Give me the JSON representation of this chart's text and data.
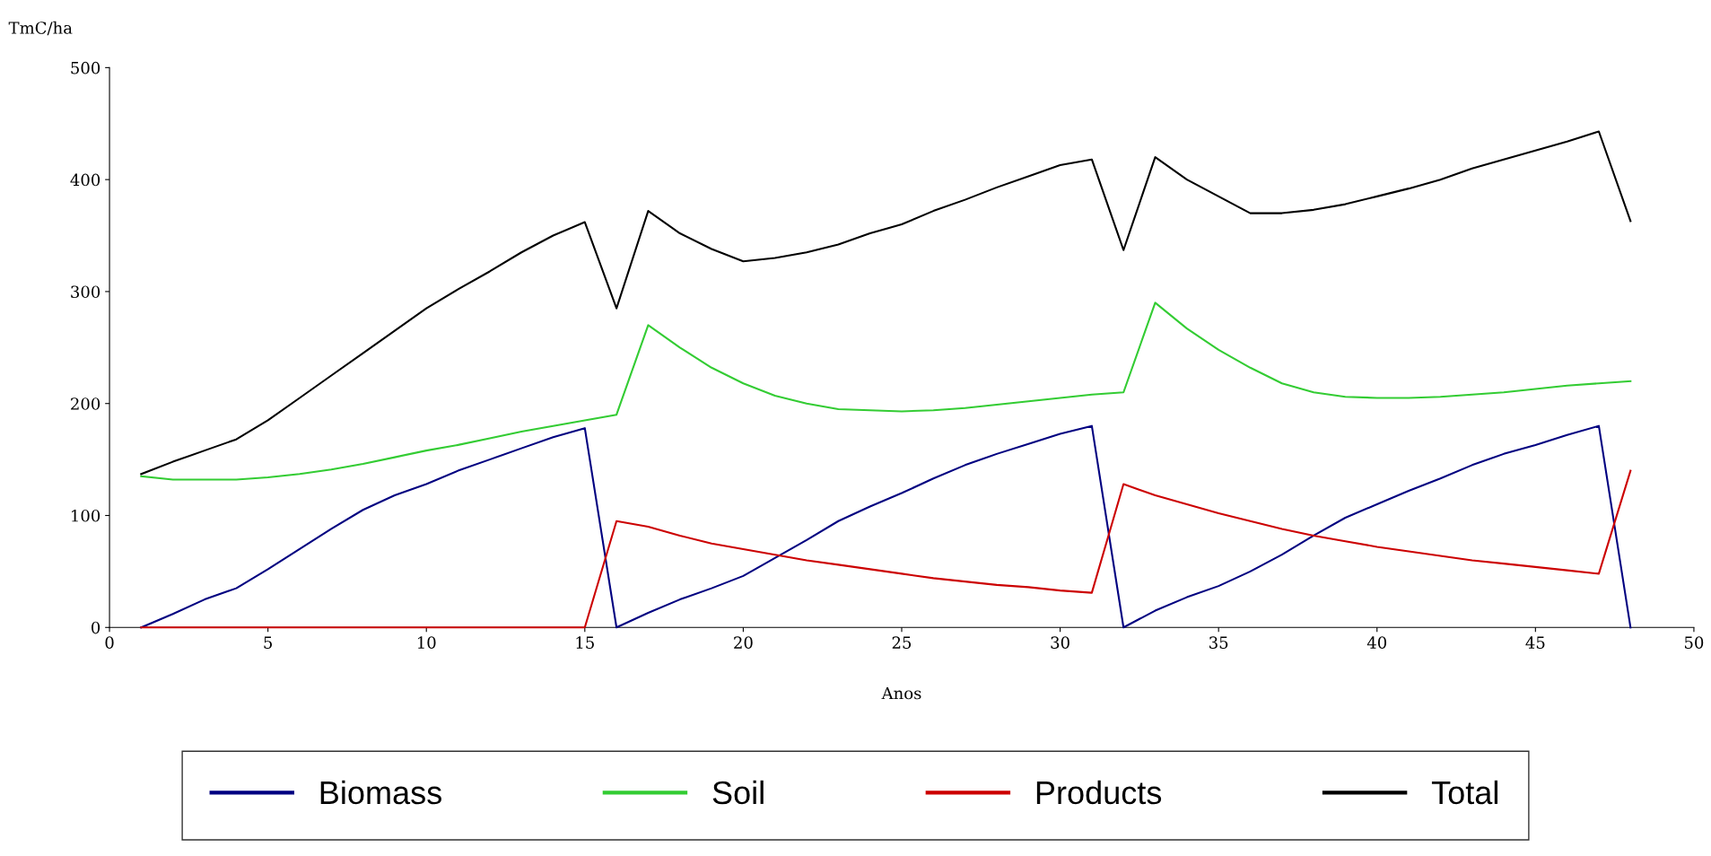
{
  "chart_data": {
    "type": "line",
    "ylabel": "TmC/ha",
    "xlabel": "Anos",
    "x": [
      1,
      2,
      3,
      4,
      5,
      6,
      7,
      8,
      9,
      10,
      11,
      12,
      13,
      14,
      15,
      16,
      17,
      18,
      19,
      20,
      21,
      22,
      23,
      24,
      25,
      26,
      27,
      28,
      29,
      30,
      31,
      32,
      33,
      34,
      35,
      36,
      37,
      38,
      39,
      40,
      41,
      42,
      43,
      44,
      45,
      46,
      47,
      48
    ],
    "series": [
      {
        "name": "Biomass",
        "color": "#000080",
        "values": [
          0,
          12,
          25,
          35,
          52,
          70,
          88,
          105,
          118,
          128,
          140,
          150,
          160,
          170,
          178,
          0,
          13,
          25,
          35,
          46,
          62,
          78,
          95,
          108,
          120,
          133,
          145,
          155,
          164,
          173,
          180,
          0,
          15,
          27,
          37,
          50,
          65,
          82,
          98,
          110,
          122,
          133,
          145,
          155,
          163,
          172,
          180,
          0
        ]
      },
      {
        "name": "Soil",
        "color": "#33cc33",
        "values": [
          135,
          132,
          132,
          132,
          134,
          137,
          141,
          146,
          152,
          158,
          163,
          169,
          175,
          180,
          185,
          190,
          270,
          250,
          232,
          218,
          207,
          200,
          195,
          194,
          193,
          194,
          196,
          199,
          202,
          205,
          208,
          210,
          290,
          267,
          248,
          232,
          218,
          210,
          206,
          205,
          205,
          206,
          208,
          210,
          213,
          216,
          218,
          220
        ]
      },
      {
        "name": "Products",
        "color": "#cc0000",
        "values": [
          0,
          0,
          0,
          0,
          0,
          0,
          0,
          0,
          0,
          0,
          0,
          0,
          0,
          0,
          0,
          95,
          90,
          82,
          75,
          70,
          65,
          60,
          56,
          52,
          48,
          44,
          41,
          38,
          36,
          33,
          31,
          128,
          118,
          110,
          102,
          95,
          88,
          82,
          77,
          72,
          68,
          64,
          60,
          57,
          54,
          51,
          48,
          140
        ]
      },
      {
        "name": "Total",
        "color": "#000000",
        "values": [
          137,
          148,
          158,
          168,
          185,
          205,
          225,
          245,
          265,
          285,
          302,
          318,
          335,
          350,
          362,
          285,
          372,
          352,
          338,
          327,
          330,
          335,
          342,
          352,
          360,
          372,
          382,
          393,
          403,
          413,
          418,
          337,
          420,
          400,
          385,
          370,
          370,
          373,
          378,
          385,
          392,
          400,
          410,
          418,
          426,
          434,
          443,
          363
        ]
      }
    ],
    "xlim": [
      0,
      50
    ],
    "xticks": [
      0,
      5,
      10,
      15,
      20,
      25,
      30,
      35,
      40,
      45,
      50
    ],
    "ylim": [
      0,
      500
    ],
    "yticks": [
      0,
      100,
      200,
      300,
      400,
      500
    ],
    "grid": false,
    "legend": "bottom",
    "marker": "none",
    "line_style": "solid"
  }
}
